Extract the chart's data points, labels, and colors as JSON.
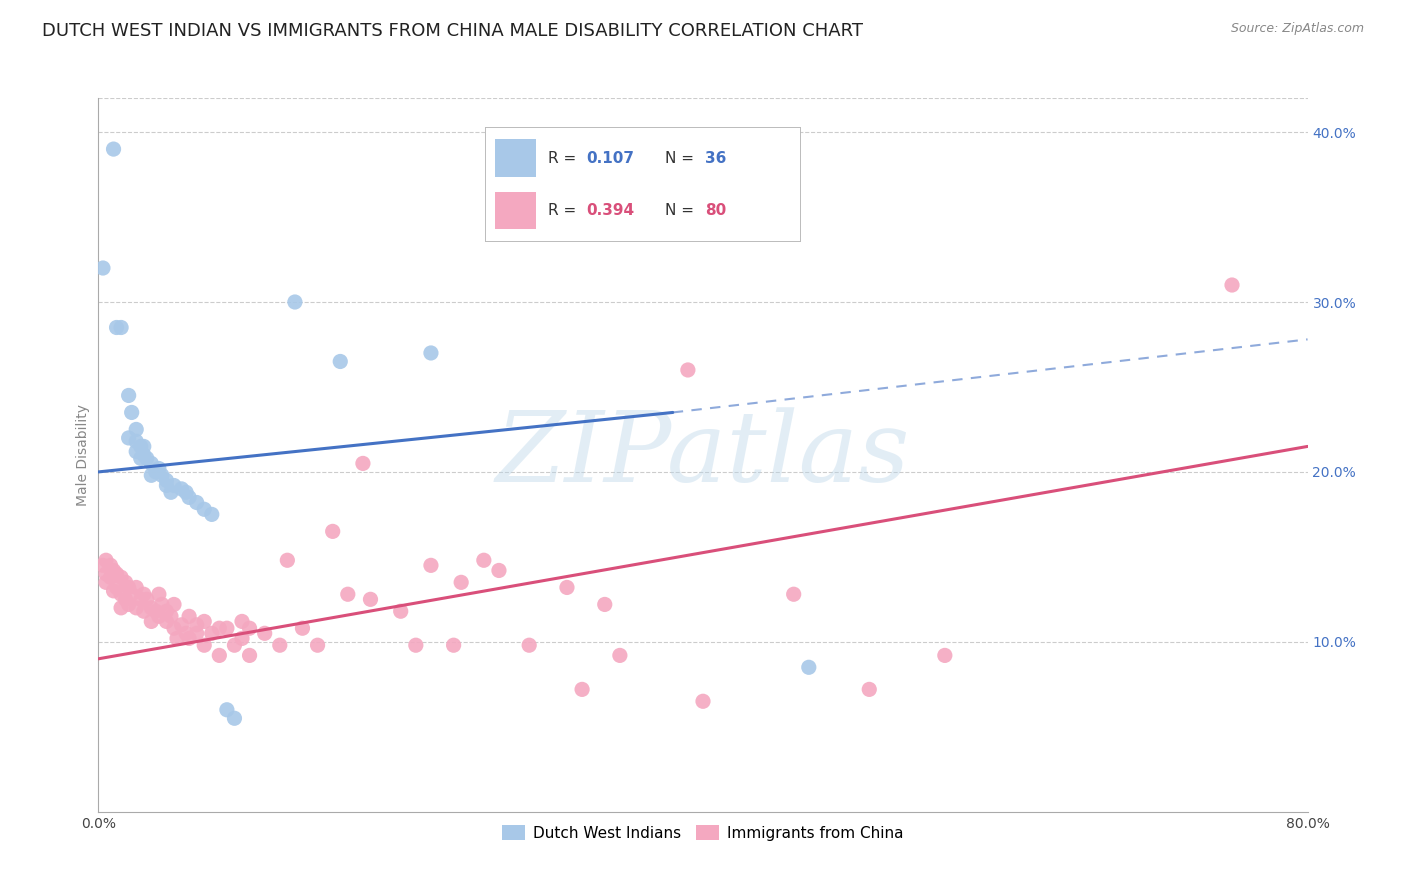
{
  "title": "DUTCH WEST INDIAN VS IMMIGRANTS FROM CHINA MALE DISABILITY CORRELATION CHART",
  "source": "Source: ZipAtlas.com",
  "ylabel": "Male Disability",
  "xlim": [
    0.0,
    0.8
  ],
  "ylim": [
    0.0,
    0.42
  ],
  "yticks_right": [
    0.1,
    0.2,
    0.3,
    0.4
  ],
  "ytick_right_labels": [
    "10.0%",
    "20.0%",
    "30.0%",
    "40.0%"
  ],
  "blue_R": 0.107,
  "blue_N": 36,
  "pink_R": 0.394,
  "pink_N": 80,
  "blue_color": "#a8c8e8",
  "pink_color": "#f4a8c0",
  "blue_line_color": "#4472c4",
  "pink_line_color": "#d94f7a",
  "blue_scatter": [
    [
      0.003,
      0.32
    ],
    [
      0.01,
      0.39
    ],
    [
      0.012,
      0.285
    ],
    [
      0.015,
      0.285
    ],
    [
      0.02,
      0.245
    ],
    [
      0.02,
      0.22
    ],
    [
      0.022,
      0.235
    ],
    [
      0.025,
      0.225
    ],
    [
      0.025,
      0.218
    ],
    [
      0.025,
      0.212
    ],
    [
      0.028,
      0.215
    ],
    [
      0.028,
      0.208
    ],
    [
      0.03,
      0.215
    ],
    [
      0.03,
      0.21
    ],
    [
      0.032,
      0.208
    ],
    [
      0.035,
      0.205
    ],
    [
      0.035,
      0.198
    ],
    [
      0.038,
      0.2
    ],
    [
      0.04,
      0.202
    ],
    [
      0.042,
      0.198
    ],
    [
      0.045,
      0.195
    ],
    [
      0.045,
      0.192
    ],
    [
      0.048,
      0.188
    ],
    [
      0.05,
      0.192
    ],
    [
      0.055,
      0.19
    ],
    [
      0.058,
      0.188
    ],
    [
      0.06,
      0.185
    ],
    [
      0.065,
      0.182
    ],
    [
      0.07,
      0.178
    ],
    [
      0.075,
      0.175
    ],
    [
      0.085,
      0.06
    ],
    [
      0.09,
      0.055
    ],
    [
      0.13,
      0.3
    ],
    [
      0.16,
      0.265
    ],
    [
      0.22,
      0.27
    ],
    [
      0.47,
      0.085
    ]
  ],
  "pink_scatter": [
    [
      0.003,
      0.145
    ],
    [
      0.005,
      0.148
    ],
    [
      0.005,
      0.14
    ],
    [
      0.005,
      0.135
    ],
    [
      0.008,
      0.145
    ],
    [
      0.008,
      0.138
    ],
    [
      0.01,
      0.142
    ],
    [
      0.01,
      0.13
    ],
    [
      0.012,
      0.14
    ],
    [
      0.012,
      0.132
    ],
    [
      0.015,
      0.138
    ],
    [
      0.015,
      0.128
    ],
    [
      0.015,
      0.12
    ],
    [
      0.018,
      0.135
    ],
    [
      0.018,
      0.125
    ],
    [
      0.02,
      0.132
    ],
    [
      0.02,
      0.122
    ],
    [
      0.022,
      0.128
    ],
    [
      0.025,
      0.132
    ],
    [
      0.025,
      0.12
    ],
    [
      0.028,
      0.125
    ],
    [
      0.03,
      0.128
    ],
    [
      0.03,
      0.118
    ],
    [
      0.032,
      0.125
    ],
    [
      0.035,
      0.12
    ],
    [
      0.035,
      0.112
    ],
    [
      0.038,
      0.118
    ],
    [
      0.04,
      0.128
    ],
    [
      0.04,
      0.115
    ],
    [
      0.042,
      0.122
    ],
    [
      0.045,
      0.118
    ],
    [
      0.045,
      0.112
    ],
    [
      0.048,
      0.115
    ],
    [
      0.05,
      0.122
    ],
    [
      0.05,
      0.108
    ],
    [
      0.052,
      0.102
    ],
    [
      0.055,
      0.11
    ],
    [
      0.058,
      0.105
    ],
    [
      0.06,
      0.115
    ],
    [
      0.06,
      0.102
    ],
    [
      0.065,
      0.11
    ],
    [
      0.065,
      0.105
    ],
    [
      0.07,
      0.112
    ],
    [
      0.07,
      0.098
    ],
    [
      0.075,
      0.105
    ],
    [
      0.08,
      0.108
    ],
    [
      0.08,
      0.092
    ],
    [
      0.085,
      0.108
    ],
    [
      0.09,
      0.098
    ],
    [
      0.095,
      0.112
    ],
    [
      0.095,
      0.102
    ],
    [
      0.1,
      0.108
    ],
    [
      0.1,
      0.092
    ],
    [
      0.11,
      0.105
    ],
    [
      0.12,
      0.098
    ],
    [
      0.125,
      0.148
    ],
    [
      0.135,
      0.108
    ],
    [
      0.145,
      0.098
    ],
    [
      0.155,
      0.165
    ],
    [
      0.165,
      0.128
    ],
    [
      0.175,
      0.205
    ],
    [
      0.18,
      0.125
    ],
    [
      0.2,
      0.118
    ],
    [
      0.21,
      0.098
    ],
    [
      0.22,
      0.145
    ],
    [
      0.235,
      0.098
    ],
    [
      0.24,
      0.135
    ],
    [
      0.255,
      0.148
    ],
    [
      0.265,
      0.142
    ],
    [
      0.285,
      0.098
    ],
    [
      0.31,
      0.132
    ],
    [
      0.32,
      0.072
    ],
    [
      0.335,
      0.122
    ],
    [
      0.345,
      0.092
    ],
    [
      0.39,
      0.26
    ],
    [
      0.4,
      0.065
    ],
    [
      0.46,
      0.128
    ],
    [
      0.51,
      0.072
    ],
    [
      0.56,
      0.092
    ],
    [
      0.75,
      0.31
    ]
  ],
  "blue_trendline_solid": [
    [
      0.0,
      0.2
    ],
    [
      0.38,
      0.235
    ]
  ],
  "blue_trendline_dashed": [
    [
      0.38,
      0.235
    ],
    [
      0.8,
      0.278
    ]
  ],
  "pink_trendline": [
    [
      0.0,
      0.09
    ],
    [
      0.8,
      0.215
    ]
  ],
  "watermark_text": "ZIPatlas",
  "background_color": "#ffffff",
  "grid_color": "#cccccc",
  "title_fontsize": 13,
  "axis_label_fontsize": 10,
  "tick_fontsize": 10,
  "dot_size": 120
}
